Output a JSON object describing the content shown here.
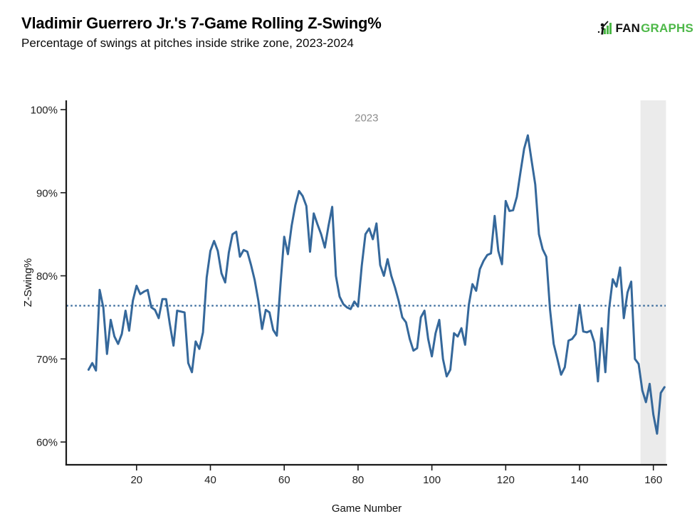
{
  "header": {
    "title": "Vladimir Guerrero Jr.'s 7-Game Rolling Z-Swing%",
    "subtitle": "Percentage of swings at pitches inside strike zone, 2023-2024"
  },
  "logo": {
    "fan": "FAN",
    "graphs": "GRAPHS",
    "green": "#4db848",
    "dark": "#111111"
  },
  "chart_data": {
    "type": "line",
    "title": "Vladimir Guerrero Jr.'s 7-Game Rolling Z-Swing%",
    "subtitle": "Percentage of swings at pitches inside strike zone, 2023-2024",
    "xlabel": "Game Number",
    "ylabel": "Z-Swing%",
    "line_color": "#35689b",
    "reference_line": {
      "value": 76.4,
      "style": "dotted",
      "color": "#35689b"
    },
    "shaded_region": {
      "from_game": 156.5,
      "to_game": 163.4,
      "color": "#ebebeb"
    },
    "annotations": [
      {
        "text": "2023",
        "game": 82.3,
        "value": 98.6,
        "color": "#8c8c8c"
      }
    ],
    "x_axis": {
      "min": 1,
      "max": 164,
      "ticks": [
        20,
        40,
        60,
        80,
        100,
        120,
        140,
        160
      ]
    },
    "y_axis": {
      "min": 60,
      "max": 100,
      "ticks": [
        {
          "value": 100,
          "label": "100%"
        },
        {
          "value": 90,
          "label": "90%"
        },
        {
          "value": 80,
          "label": "80%"
        },
        {
          "value": 70,
          "label": "70%"
        },
        {
          "value": 60,
          "label": "60%"
        }
      ]
    },
    "game_start": 7,
    "game_end": 163,
    "values": [
      68.7,
      69.5,
      68.6,
      78.3,
      76.2,
      70.6,
      74.7,
      72.7,
      71.8,
      73.0,
      75.8,
      73.4,
      77.0,
      78.8,
      77.8,
      78.1,
      78.3,
      76.2,
      75.9,
      74.9,
      77.2,
      77.2,
      74.2,
      71.6,
      75.8,
      75.7,
      75.6,
      69.5,
      68.4,
      72.1,
      71.2,
      73.2,
      79.8,
      83.0,
      84.2,
      83.0,
      80.3,
      79.2,
      82.8,
      85.0,
      85.3,
      82.3,
      83.1,
      82.9,
      81.3,
      79.5,
      77.0,
      73.6,
      75.9,
      75.6,
      73.5,
      72.8,
      79.0,
      84.7,
      82.6,
      86.0,
      88.5,
      90.2,
      89.6,
      88.4,
      82.9,
      87.5,
      86.2,
      85.0,
      83.4,
      86.0,
      88.3,
      80.0,
      77.5,
      76.6,
      76.2,
      76.0,
      76.9,
      76.3,
      81.2,
      85.0,
      85.7,
      84.4,
      86.3,
      81.3,
      80.0,
      82.0,
      80.0,
      78.6,
      77.0,
      75.0,
      74.4,
      72.4,
      71.0,
      71.3,
      75.0,
      75.8,
      72.4,
      70.3,
      73.1,
      74.7,
      70.0,
      67.9,
      68.7,
      73.1,
      72.7,
      73.7,
      71.7,
      76.5,
      79.0,
      78.2,
      80.8,
      81.8,
      82.5,
      82.7,
      87.2,
      83.0,
      81.4,
      89.0,
      87.8,
      87.9,
      89.5,
      92.5,
      95.3,
      96.9,
      93.9,
      91.0,
      85.0,
      83.2,
      82.3,
      76.0,
      71.8,
      70.0,
      68.1,
      69.0,
      72.2,
      72.4,
      73.0,
      76.5,
      73.3,
      73.2,
      73.4,
      72.0,
      67.3,
      73.7,
      68.4,
      76.0,
      79.6,
      78.7,
      81.0,
      74.9,
      78.0,
      79.3,
      70.0,
      69.4,
      66.2,
      64.8,
      67.0,
      63.3,
      61.0,
      65.9,
      66.6
    ]
  }
}
